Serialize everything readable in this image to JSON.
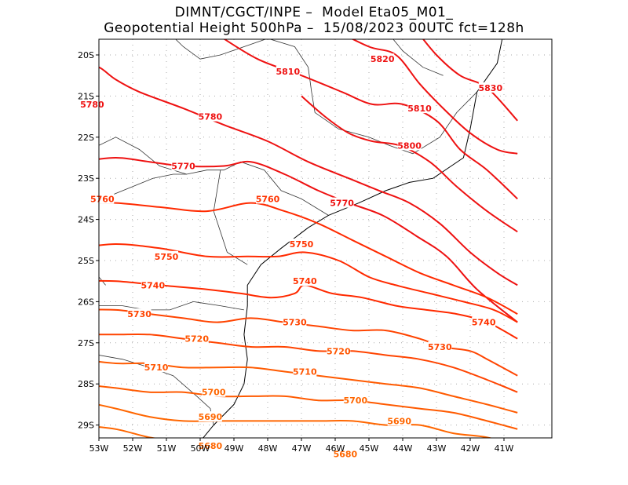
{
  "title": {
    "line1": "DIMNT/CGCT/INPE –  Model Eta05_M01_",
    "line2": "Geopotential Height 500hPa –  15/08/2023 00UTC fct=128h"
  },
  "colors": {
    "warm": "#ee1111",
    "mid": "#ff3300",
    "cool": "#ff6600",
    "grid": "#aaaaaa",
    "coast": "#000000"
  },
  "lat_labels": [
    "20S",
    "21S",
    "22S",
    "23S",
    "24S",
    "25S",
    "26S",
    "27S",
    "28S",
    "29S"
  ],
  "lon_labels": [
    "53W",
    "52W",
    "51W",
    "50W",
    "49W",
    "48W",
    "47W",
    "46W",
    "45W",
    "44W",
    "43W",
    "42W",
    "41W"
  ],
  "contours": [
    {
      "value": "5830",
      "label": "5830",
      "points": [
        [
          -43.6,
          -19.4
        ],
        [
          -43.0,
          -20.0
        ],
        [
          -42.3,
          -20.5
        ],
        [
          -41.5,
          -20.8
        ],
        [
          -40.6,
          -21.6
        ]
      ]
    },
    {
      "value": "5820",
      "label": "5820",
      "points": [
        [
          -46.0,
          -19.4
        ],
        [
          -45.0,
          -19.8
        ],
        [
          -44.2,
          -20.0
        ],
        [
          -43.5,
          -20.7
        ],
        [
          -42.8,
          -21.3
        ],
        [
          -42.0,
          -21.9
        ],
        [
          -41.2,
          -22.3
        ],
        [
          -40.6,
          -22.4
        ]
      ]
    },
    {
      "value": "5810",
      "label": "5810",
      "points": [
        [
          -49.5,
          -19.5
        ],
        [
          -48.3,
          -20.1
        ],
        [
          -47.0,
          -20.5
        ],
        [
          -45.8,
          -20.9
        ],
        [
          -44.9,
          -21.2
        ],
        [
          -44.0,
          -21.2
        ],
        [
          -43.0,
          -21.6
        ],
        [
          -42.3,
          -22.3
        ],
        [
          -41.5,
          -22.8
        ],
        [
          -40.6,
          -23.5
        ]
      ]
    },
    {
      "value": "5800",
      "label": "5800",
      "points": [
        [
          -47.0,
          -21.0
        ],
        [
          -46.3,
          -21.5
        ],
        [
          -45.6,
          -21.9
        ],
        [
          -44.9,
          -22.1
        ],
        [
          -44.1,
          -22.2
        ],
        [
          -43.2,
          -22.6
        ],
        [
          -42.4,
          -23.2
        ],
        [
          -41.5,
          -23.8
        ],
        [
          -40.6,
          -24.3
        ]
      ]
    },
    {
      "value": "5780",
      "label": "5780",
      "points": [
        [
          -53.6,
          -21.1
        ],
        [
          -53.3,
          -20.8
        ],
        [
          -53.4,
          -20.3
        ],
        [
          -53.0,
          -20.3
        ],
        [
          -52.5,
          -20.6
        ],
        [
          -51.8,
          -20.9
        ],
        [
          -50.5,
          -21.3
        ],
        [
          -49.3,
          -21.7
        ],
        [
          -48.0,
          -22.1
        ],
        [
          -46.8,
          -22.6
        ],
        [
          -45.6,
          -23.0
        ],
        [
          -44.7,
          -23.3
        ],
        [
          -43.8,
          -23.6
        ],
        [
          -42.9,
          -24.1
        ],
        [
          -42.0,
          -24.8
        ],
        [
          -41.2,
          -25.3
        ],
        [
          -40.6,
          -25.6
        ]
      ]
    },
    {
      "value": "5770",
      "label": "5770",
      "points": [
        [
          -53.6,
          -22.6
        ],
        [
          -52.5,
          -22.5
        ],
        [
          -51.5,
          -22.6
        ],
        [
          -50.5,
          -22.7
        ],
        [
          -49.3,
          -22.7
        ],
        [
          -48.5,
          -22.6
        ],
        [
          -47.5,
          -22.9
        ],
        [
          -46.5,
          -23.3
        ],
        [
          -45.6,
          -23.6
        ],
        [
          -44.6,
          -23.9
        ],
        [
          -43.6,
          -24.4
        ],
        [
          -42.7,
          -24.9
        ],
        [
          -41.8,
          -25.7
        ],
        [
          -40.6,
          -26.5
        ]
      ]
    },
    {
      "value": "5760",
      "label": "5760",
      "points": [
        [
          -53.6,
          -23.6
        ],
        [
          -52.5,
          -23.6
        ],
        [
          -51.2,
          -23.7
        ],
        [
          -49.8,
          -23.8
        ],
        [
          -48.5,
          -23.6
        ],
        [
          -47.5,
          -23.8
        ],
        [
          -46.5,
          -24.1
        ],
        [
          -45.5,
          -24.5
        ],
        [
          -44.5,
          -24.9
        ],
        [
          -43.5,
          -25.3
        ],
        [
          -42.5,
          -25.6
        ],
        [
          -41.5,
          -25.9
        ],
        [
          -40.6,
          -26.3
        ]
      ]
    },
    {
      "value": "5750",
      "label": "5750",
      "points": [
        [
          -53.6,
          -24.7
        ],
        [
          -52.5,
          -24.6
        ],
        [
          -51.2,
          -24.7
        ],
        [
          -49.8,
          -24.9
        ],
        [
          -48.6,
          -24.9
        ],
        [
          -47.7,
          -24.9
        ],
        [
          -46.9,
          -24.8
        ],
        [
          -45.9,
          -25.0
        ],
        [
          -45.0,
          -25.4
        ],
        [
          -44.2,
          -25.6
        ],
        [
          -43.2,
          -25.8
        ],
        [
          -42.2,
          -26.0
        ],
        [
          -41.3,
          -26.2
        ],
        [
          -40.6,
          -26.5
        ]
      ]
    },
    {
      "value": "5740",
      "label": "5740",
      "points": [
        [
          -53.6,
          -25.5
        ],
        [
          -52.5,
          -25.5
        ],
        [
          -51.2,
          -25.6
        ],
        [
          -49.8,
          -25.7
        ],
        [
          -48.8,
          -25.8
        ],
        [
          -47.9,
          -25.9
        ],
        [
          -47.2,
          -25.8
        ],
        [
          -46.9,
          -25.6
        ],
        [
          -46.1,
          -25.8
        ],
        [
          -45.2,
          -25.9
        ],
        [
          -44.2,
          -26.1
        ],
        [
          -43.3,
          -26.2
        ],
        [
          -42.4,
          -26.3
        ],
        [
          -41.5,
          -26.5
        ],
        [
          -40.6,
          -26.9
        ]
      ]
    },
    {
      "value": "5730",
      "label": "5730",
      "points": [
        [
          -53.6,
          -26.2
        ],
        [
          -52.5,
          -26.2
        ],
        [
          -51.5,
          -26.3
        ],
        [
          -50.5,
          -26.4
        ],
        [
          -49.5,
          -26.5
        ],
        [
          -48.5,
          -26.4
        ],
        [
          -47.5,
          -26.5
        ],
        [
          -46.5,
          -26.6
        ],
        [
          -45.5,
          -26.7
        ],
        [
          -44.5,
          -26.7
        ],
        [
          -43.5,
          -26.9
        ],
        [
          -42.8,
          -27.1
        ],
        [
          -42.0,
          -27.2
        ],
        [
          -41.5,
          -27.4
        ],
        [
          -40.6,
          -27.8
        ]
      ]
    },
    {
      "value": "5720",
      "label": "5720",
      "points": [
        [
          -53.6,
          -26.8
        ],
        [
          -52.5,
          -26.8
        ],
        [
          -51.5,
          -26.8
        ],
        [
          -50.5,
          -26.9
        ],
        [
          -49.5,
          -27.0
        ],
        [
          -48.5,
          -27.1
        ],
        [
          -47.5,
          -27.1
        ],
        [
          -46.5,
          -27.2
        ],
        [
          -45.5,
          -27.2
        ],
        [
          -44.5,
          -27.3
        ],
        [
          -43.5,
          -27.4
        ],
        [
          -42.5,
          -27.6
        ],
        [
          -41.5,
          -27.9
        ],
        [
          -40.6,
          -28.2
        ]
      ]
    },
    {
      "value": "5710",
      "label": "5710",
      "points": [
        [
          -53.6,
          -27.4
        ],
        [
          -52.5,
          -27.5
        ],
        [
          -51.5,
          -27.5
        ],
        [
          -50.5,
          -27.6
        ],
        [
          -49.5,
          -27.6
        ],
        [
          -48.5,
          -27.6
        ],
        [
          -47.5,
          -27.7
        ],
        [
          -46.5,
          -27.8
        ],
        [
          -45.5,
          -27.9
        ],
        [
          -44.5,
          -28.0
        ],
        [
          -43.5,
          -28.1
        ],
        [
          -42.5,
          -28.3
        ],
        [
          -41.5,
          -28.5
        ],
        [
          -40.6,
          -28.7
        ]
      ]
    },
    {
      "value": "5700",
      "label": "5700",
      "points": [
        [
          -53.6,
          -28.0
        ],
        [
          -52.5,
          -28.1
        ],
        [
          -51.5,
          -28.2
        ],
        [
          -50.5,
          -28.2
        ],
        [
          -49.5,
          -28.3
        ],
        [
          -48.5,
          -28.3
        ],
        [
          -47.5,
          -28.3
        ],
        [
          -46.5,
          -28.4
        ],
        [
          -45.5,
          -28.4
        ],
        [
          -44.5,
          -28.5
        ],
        [
          -43.5,
          -28.6
        ],
        [
          -42.5,
          -28.7
        ],
        [
          -41.5,
          -28.9
        ],
        [
          -40.6,
          -29.1
        ]
      ]
    },
    {
      "value": "5690",
      "label": "5690",
      "points": [
        [
          -53.6,
          -28.4
        ],
        [
          -52.5,
          -28.6
        ],
        [
          -51.5,
          -28.8
        ],
        [
          -50.5,
          -28.9
        ],
        [
          -49.5,
          -28.9
        ],
        [
          -48.5,
          -28.9
        ],
        [
          -47.5,
          -28.9
        ],
        [
          -46.5,
          -28.9
        ],
        [
          -45.5,
          -28.9
        ],
        [
          -44.5,
          -29.0
        ],
        [
          -43.5,
          -29.0
        ],
        [
          -42.5,
          -29.2
        ],
        [
          -41.5,
          -29.3
        ],
        [
          -40.6,
          -29.5
        ]
      ]
    },
    {
      "value": "5680",
      "label": "5680",
      "points": [
        [
          -53.6,
          -29.0
        ],
        [
          -52.5,
          -29.1
        ],
        [
          -51.5,
          -29.3
        ],
        [
          -50.5,
          -29.4
        ],
        [
          -49.5,
          -29.5
        ],
        [
          -48.5,
          -29.5
        ],
        [
          -47.5,
          -29.5
        ],
        [
          -46.5,
          -29.5
        ],
        [
          -45.5,
          -29.5
        ],
        [
          -44.5,
          -29.5
        ],
        [
          -43.5,
          -29.5
        ],
        [
          -42.5,
          -29.5
        ],
        [
          -41.5,
          -29.6
        ],
        [
          -40.6,
          -29.7
        ]
      ]
    }
  ],
  "labels": [
    {
      "text": "5830",
      "lon": -41.4,
      "lat": -20.8,
      "color": "#ee1111"
    },
    {
      "text": "5820",
      "lon": -44.6,
      "lat": -20.1,
      "color": "#ee1111"
    },
    {
      "text": "5810",
      "lon": -47.4,
      "lat": -20.4,
      "color": "#ee1111"
    },
    {
      "text": "5810",
      "lon": -43.5,
      "lat": -21.3,
      "color": "#ee1111"
    },
    {
      "text": "5800",
      "lon": -43.8,
      "lat": -22.2,
      "color": "#ee1111"
    },
    {
      "text": "5780",
      "lon": -53.2,
      "lat": -21.2,
      "color": "#ee1111"
    },
    {
      "text": "5780",
      "lon": -49.7,
      "lat": -21.5,
      "color": "#ee1111"
    },
    {
      "text": "5770",
      "lon": -50.5,
      "lat": -22.7,
      "color": "#ee1111"
    },
    {
      "text": "5770",
      "lon": -45.8,
      "lat": -23.6,
      "color": "#ee1111"
    },
    {
      "text": "5760",
      "lon": -52.9,
      "lat": -23.5,
      "color": "#ff3300"
    },
    {
      "text": "5760",
      "lon": -48.0,
      "lat": -23.5,
      "color": "#ff3300"
    },
    {
      "text": "5750",
      "lon": -51.0,
      "lat": -24.9,
      "color": "#ff3300"
    },
    {
      "text": "5750",
      "lon": -47.0,
      "lat": -24.6,
      "color": "#ff3300"
    },
    {
      "text": "5740",
      "lon": -51.4,
      "lat": -25.6,
      "color": "#ff3300"
    },
    {
      "text": "5740",
      "lon": -46.9,
      "lat": -25.5,
      "color": "#ff3300"
    },
    {
      "text": "5740",
      "lon": -41.6,
      "lat": -26.5,
      "color": "#ff3300"
    },
    {
      "text": "5730",
      "lon": -51.8,
      "lat": -26.3,
      "color": "#ff4400"
    },
    {
      "text": "5730",
      "lon": -47.2,
      "lat": -26.5,
      "color": "#ff4400"
    },
    {
      "text": "5730",
      "lon": -42.9,
      "lat": -27.1,
      "color": "#ff4400"
    },
    {
      "text": "5720",
      "lon": -50.1,
      "lat": -26.9,
      "color": "#ff5500"
    },
    {
      "text": "5720",
      "lon": -45.9,
      "lat": -27.2,
      "color": "#ff5500"
    },
    {
      "text": "5710",
      "lon": -51.3,
      "lat": -27.6,
      "color": "#ff5500"
    },
    {
      "text": "5710",
      "lon": -46.9,
      "lat": -27.7,
      "color": "#ff5500"
    },
    {
      "text": "5700",
      "lon": -49.6,
      "lat": -28.2,
      "color": "#ff6600"
    },
    {
      "text": "5700",
      "lon": -45.4,
      "lat": -28.4,
      "color": "#ff6600"
    },
    {
      "text": "5690",
      "lon": -49.7,
      "lat": -28.8,
      "color": "#ff6600"
    },
    {
      "text": "5690",
      "lon": -44.1,
      "lat": -28.9,
      "color": "#ff6600"
    },
    {
      "text": "5680",
      "lon": -49.7,
      "lat": -29.5,
      "color": "#ff6600"
    },
    {
      "text": "5680",
      "lon": -45.7,
      "lat": -29.7,
      "color": "#ff6600"
    }
  ],
  "coastline": [
    [
      -41.0,
      -19.4
    ],
    [
      -41.2,
      -20.2
    ],
    [
      -41.8,
      -20.9
    ],
    [
      -42.0,
      -21.8
    ],
    [
      -42.2,
      -22.5
    ],
    [
      -43.1,
      -23.0
    ],
    [
      -43.8,
      -23.1
    ],
    [
      -44.5,
      -23.3
    ],
    [
      -45.3,
      -23.6
    ],
    [
      -46.2,
      -23.9
    ],
    [
      -46.8,
      -24.2
    ],
    [
      -47.6,
      -24.7
    ],
    [
      -48.2,
      -25.1
    ],
    [
      -48.6,
      -25.6
    ],
    [
      -48.6,
      -26.1
    ],
    [
      -48.7,
      -26.8
    ],
    [
      -48.6,
      -27.4
    ],
    [
      -48.7,
      -28.0
    ],
    [
      -49.0,
      -28.5
    ],
    [
      -49.6,
      -29.0
    ],
    [
      -50.1,
      -29.5
    ]
  ],
  "borders": [
    [
      [
        -51.0,
        -19.4
      ],
      [
        -50.5,
        -19.8
      ],
      [
        -50.0,
        -20.1
      ],
      [
        -49.4,
        -20.0
      ],
      [
        -48.7,
        -19.8
      ],
      [
        -48.0,
        -19.6
      ],
      [
        -47.2,
        -19.8
      ],
      [
        -46.8,
        -20.3
      ],
      [
        -46.7,
        -20.9
      ],
      [
        -46.6,
        -21.4
      ],
      [
        -45.9,
        -21.8
      ],
      [
        -45.0,
        -22.0
      ],
      [
        -44.4,
        -22.2
      ],
      [
        -43.7,
        -22.4
      ],
      [
        -42.9,
        -22.0
      ],
      [
        -42.4,
        -21.4
      ],
      [
        -41.8,
        -20.9
      ]
    ],
    [
      [
        -53.6,
        -22.3
      ],
      [
        -53.0,
        -22.2
      ],
      [
        -52.5,
        -22.0
      ],
      [
        -51.8,
        -22.3
      ],
      [
        -51.2,
        -22.7
      ],
      [
        -50.4,
        -22.9
      ],
      [
        -49.8,
        -22.8
      ],
      [
        -49.3,
        -22.8
      ],
      [
        -48.8,
        -22.6
      ],
      [
        -48.1,
        -22.8
      ],
      [
        -47.6,
        -23.3
      ],
      [
        -47.0,
        -23.5
      ],
      [
        -46.2,
        -23.9
      ]
    ],
    [
      [
        -53.6,
        -23.9
      ],
      [
        -53.2,
        -23.6
      ],
      [
        -52.6,
        -23.4
      ],
      [
        -52.0,
        -23.2
      ],
      [
        -51.4,
        -23.0
      ],
      [
        -50.8,
        -22.9
      ],
      [
        -50.4,
        -22.9
      ]
    ],
    [
      [
        -49.4,
        -22.8
      ],
      [
        -49.5,
        -23.3
      ],
      [
        -49.6,
        -23.8
      ],
      [
        -49.4,
        -24.3
      ],
      [
        -49.2,
        -24.8
      ],
      [
        -48.6,
        -25.1
      ]
    ],
    [
      [
        -53.6,
        -26.3
      ],
      [
        -53.0,
        -26.1
      ],
      [
        -52.3,
        -26.1
      ],
      [
        -51.6,
        -26.2
      ],
      [
        -50.9,
        -26.2
      ],
      [
        -50.2,
        -26.0
      ],
      [
        -49.4,
        -26.1
      ],
      [
        -48.7,
        -26.2
      ]
    ],
    [
      [
        -53.6,
        -27.3
      ],
      [
        -53.0,
        -27.3
      ],
      [
        -52.3,
        -27.4
      ],
      [
        -51.5,
        -27.6
      ],
      [
        -50.8,
        -27.8
      ],
      [
        -50.1,
        -28.3
      ],
      [
        -49.7,
        -28.6
      ],
      [
        -49.6,
        -29.0
      ]
    ],
    [
      [
        -53.6,
        -24.8
      ],
      [
        -53.2,
        -25.2
      ],
      [
        -52.8,
        -25.6
      ]
    ],
    [
      [
        -44.5,
        -19.4
      ],
      [
        -44.0,
        -19.9
      ],
      [
        -43.4,
        -20.3
      ],
      [
        -42.8,
        -20.5
      ]
    ]
  ]
}
